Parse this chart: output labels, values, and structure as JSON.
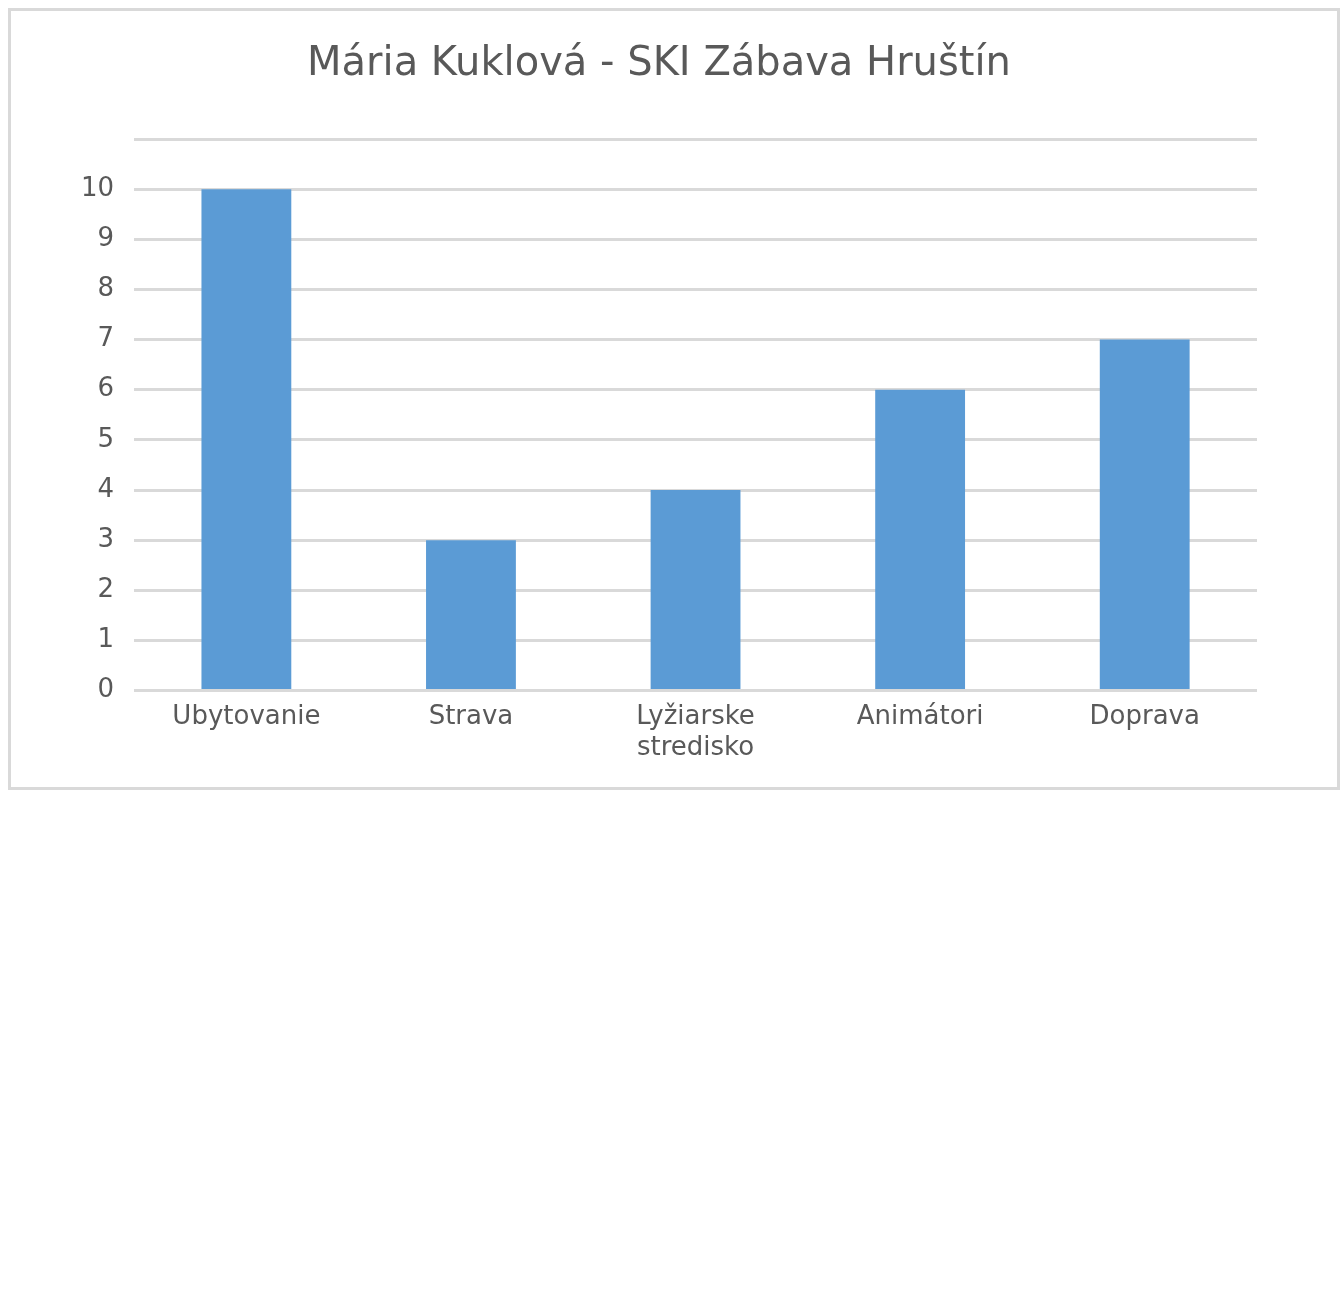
{
  "chart_data": {
    "type": "bar",
    "title": "Mária Kuklová - SKI Zábava Hruštín",
    "categories": [
      "Ubytovanie",
      "Strava",
      "Lyžiarske stredisko",
      "Animátori",
      "Doprava"
    ],
    "values": [
      10,
      3,
      4,
      6,
      7
    ],
    "color": "#5b9bd5",
    "ylim": [
      0,
      11
    ],
    "yticks": [
      0,
      1,
      2,
      3,
      4,
      5,
      6,
      7,
      8,
      9,
      10,
      {
        "value": 11,
        "label": null
      }
    ],
    "grid": "y",
    "legend": false
  }
}
